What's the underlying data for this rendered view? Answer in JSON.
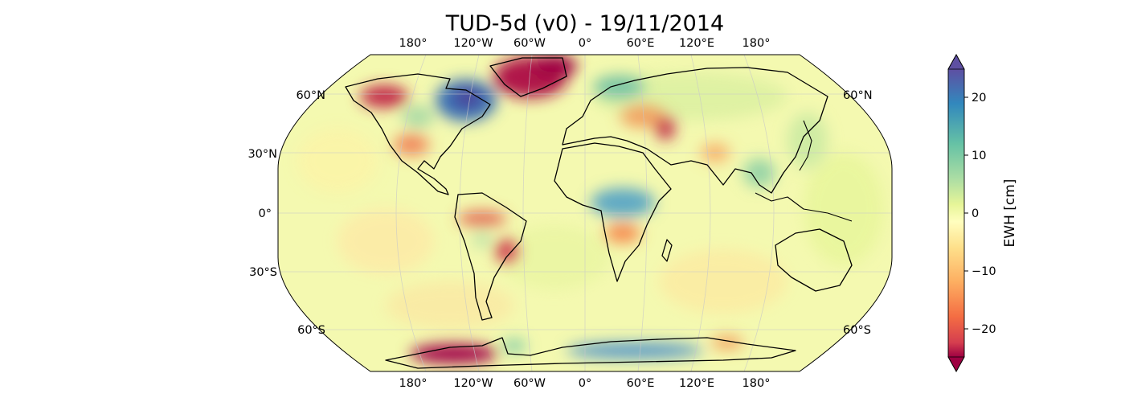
{
  "title": "TUD-5d (v0) - 19/11/2014",
  "map": {
    "projection": "robinson",
    "lon_labels_top": [
      "180°",
      "120°W",
      "60°W",
      "0°",
      "60°E",
      "120°E",
      "180°"
    ],
    "lon_labels_bottom": [
      "180°",
      "120°W",
      "60°W",
      "0°",
      "60°E",
      "120°E",
      "180°"
    ],
    "lat_labels_left": [
      "60°N",
      "30°N",
      "0°",
      "30°S",
      "60°S"
    ],
    "lat_labels_right": [
      "60°N",
      "60°S"
    ],
    "gridlines": true
  },
  "colorbar": {
    "label": "EWH [cm]",
    "ticks": [
      "20",
      "10",
      "0",
      "−10",
      "−20"
    ],
    "range": [
      -25,
      25
    ],
    "extend": "both",
    "colormap": "Spectral"
  },
  "colors": {
    "land_outline": "#000000",
    "background_field": "#f4f9b0",
    "max": "#5e4fa2",
    "min": "#9e0142"
  },
  "anomalies": [
    {
      "region": "Greenland",
      "value": -25
    },
    {
      "region": "Hudson Bay",
      "value": 25
    },
    {
      "region": "West Antarctica",
      "value": -25
    },
    {
      "region": "East Antarctica coast",
      "value": 15
    },
    {
      "region": "Alaska",
      "value": -20
    },
    {
      "region": "Central Africa",
      "value": 15
    },
    {
      "region": "Southern Africa",
      "value": -10
    },
    {
      "region": "Eastern Brazil",
      "value": -18
    },
    {
      "region": "Scandinavia",
      "value": 12
    },
    {
      "region": "Caspian region",
      "value": -20
    }
  ]
}
